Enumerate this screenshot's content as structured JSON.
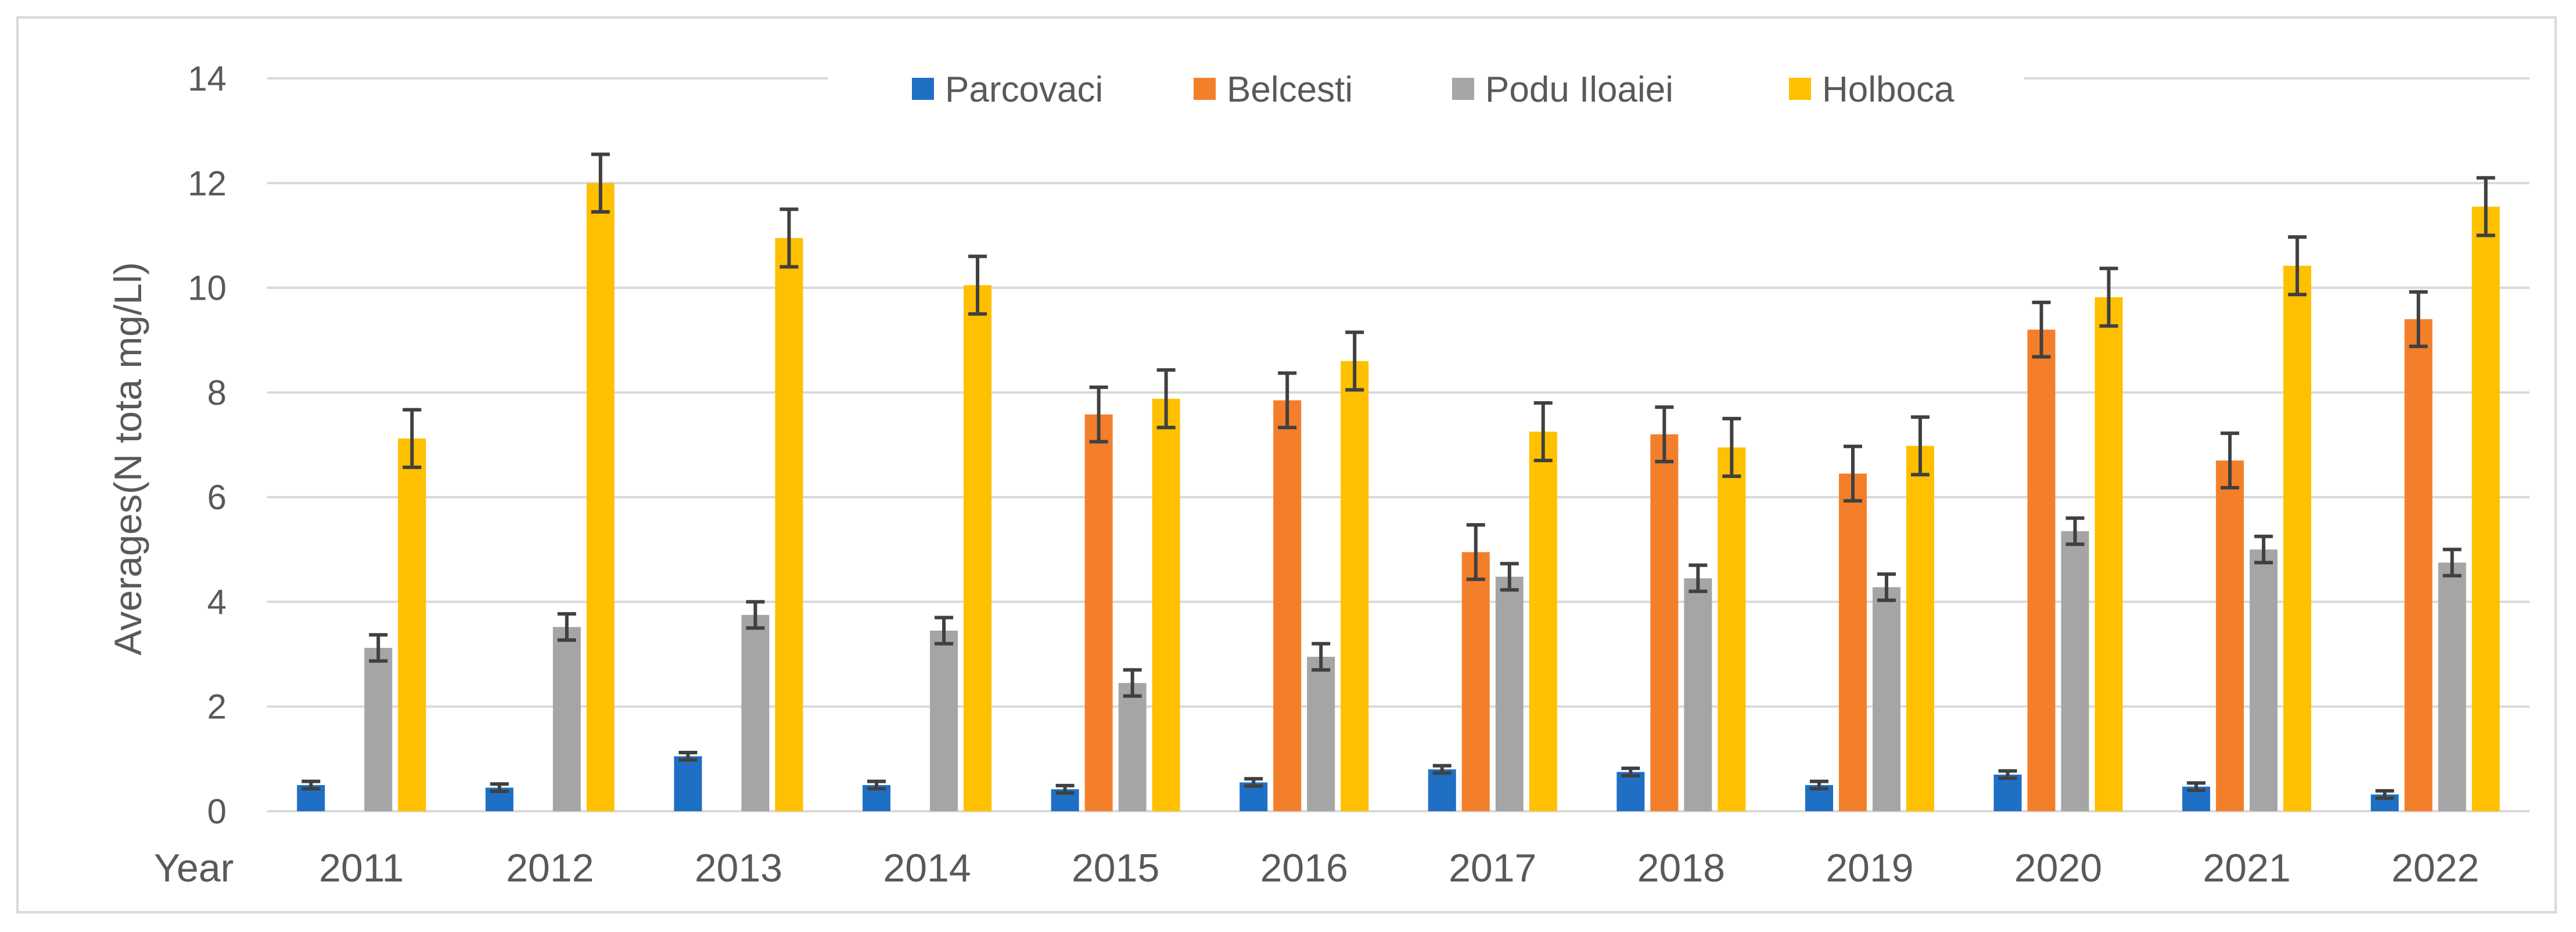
{
  "chart_data": {
    "type": "bar",
    "title": "",
    "xlabel": "Year",
    "ylabel": "Averages(N tota mg/Ll)",
    "ylim": [
      0,
      14
    ],
    "yticks": [
      0,
      2,
      4,
      6,
      8,
      10,
      12,
      14
    ],
    "grid": true,
    "legend_position": "top",
    "categories": [
      "2011",
      "2012",
      "2013",
      "2014",
      "2015",
      "2016",
      "2017",
      "2018",
      "2019",
      "2020",
      "2021",
      "2022"
    ],
    "series": [
      {
        "name": "Parcovaci",
        "color": "#1f6fc5",
        "values": [
          0.5,
          0.45,
          1.05,
          0.5,
          0.42,
          0.55,
          0.8,
          0.75,
          0.5,
          0.7,
          0.47,
          0.32
        ],
        "errors": [
          0.07,
          0.07,
          0.07,
          0.07,
          0.07,
          0.07,
          0.07,
          0.07,
          0.07,
          0.07,
          0.07,
          0.07
        ]
      },
      {
        "name": "Belcesti",
        "color": "#f47f2a",
        "values": [
          null,
          null,
          null,
          null,
          7.58,
          7.85,
          4.95,
          7.2,
          6.45,
          9.2,
          6.7,
          9.4
        ],
        "errors": [
          null,
          null,
          null,
          null,
          0.52,
          0.52,
          0.52,
          0.52,
          0.52,
          0.52,
          0.52,
          0.52
        ]
      },
      {
        "name": "Podu Iloaiei",
        "color": "#a5a5a5",
        "values": [
          3.12,
          3.52,
          3.75,
          3.45,
          2.45,
          2.95,
          4.48,
          4.45,
          4.28,
          5.35,
          5.0,
          4.75
        ],
        "errors": [
          0.25,
          0.25,
          0.25,
          0.25,
          0.25,
          0.25,
          0.25,
          0.25,
          0.25,
          0.25,
          0.25,
          0.25
        ]
      },
      {
        "name": "Holboca",
        "color": "#ffc000",
        "values": [
          7.12,
          12.0,
          10.95,
          10.05,
          7.88,
          8.6,
          7.25,
          6.95,
          6.98,
          9.82,
          10.42,
          11.55
        ],
        "errors": [
          0.55,
          0.55,
          0.55,
          0.55,
          0.55,
          0.55,
          0.55,
          0.55,
          0.55,
          0.55,
          0.55,
          0.55
        ]
      }
    ]
  }
}
